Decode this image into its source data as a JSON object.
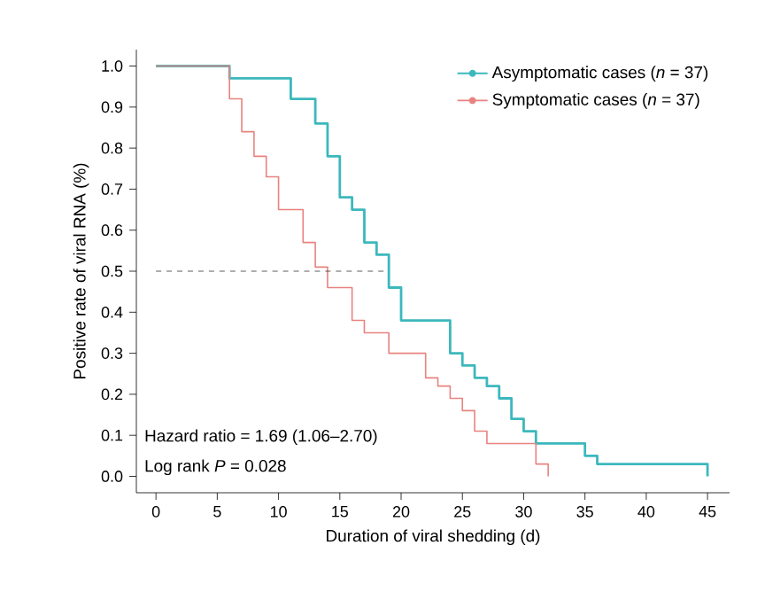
{
  "chart_data": {
    "type": "step",
    "xlabel": "Duration of viral shedding (d)",
    "ylabel": "Positive rate of viral RNA (%)",
    "xlim": [
      -1.6,
      46.8
    ],
    "ylim": [
      -0.04,
      1.04
    ],
    "xticks": [
      0,
      5,
      10,
      15,
      20,
      25,
      30,
      35,
      40,
      45
    ],
    "yticks": [
      {
        "value": 0,
        "label": "0.0"
      },
      0.1,
      0.2,
      0.3,
      0.4,
      0.5,
      0.6,
      0.7,
      0.8,
      0.9,
      {
        "value": 1,
        "label": "1.0"
      }
    ],
    "series": [
      {
        "name": "Asymptomatic cases (*n* = 37)",
        "color": "#3cb8bd",
        "x": [
          0,
          6,
          11,
          13,
          14,
          15,
          16,
          17,
          18,
          19,
          20,
          24,
          25,
          26,
          27,
          28,
          29,
          30,
          31,
          35,
          36,
          45
        ],
        "values": [
          1,
          0.97,
          0.92,
          0.86,
          0.78,
          0.68,
          0.65,
          0.57,
          0.54,
          0.46,
          0.38,
          0.3,
          0.27,
          0.24,
          0.22,
          0.19,
          0.14,
          0.11,
          0.08,
          0.05,
          0.03,
          0
        ]
      },
      {
        "name": "Symptomatic cases (*n* = 37)",
        "color": "#e8837f",
        "x": [
          0,
          6,
          7,
          8,
          9,
          10,
          12,
          13,
          14,
          16,
          17,
          19,
          22,
          23,
          24,
          25,
          26,
          27,
          31,
          32
        ],
        "values": [
          1,
          0.92,
          0.84,
          0.78,
          0.73,
          0.65,
          0.57,
          0.51,
          0.46,
          0.38,
          0.35,
          0.3,
          0.24,
          0.22,
          0.19,
          0.16,
          0.11,
          0.08,
          0.03,
          0
        ]
      }
    ],
    "ref_lines": [
      {
        "axis": "y",
        "value": 0.5,
        "line_style": "dashed",
        "color": "#333333"
      }
    ],
    "annotations": [
      "Hazard ratio = 1.69 (1.06–2.70)",
      "Log rank *P* = 0.028"
    ],
    "legend": "top right",
    "grid": false,
    "marker": "none",
    "line_style": "solid"
  }
}
